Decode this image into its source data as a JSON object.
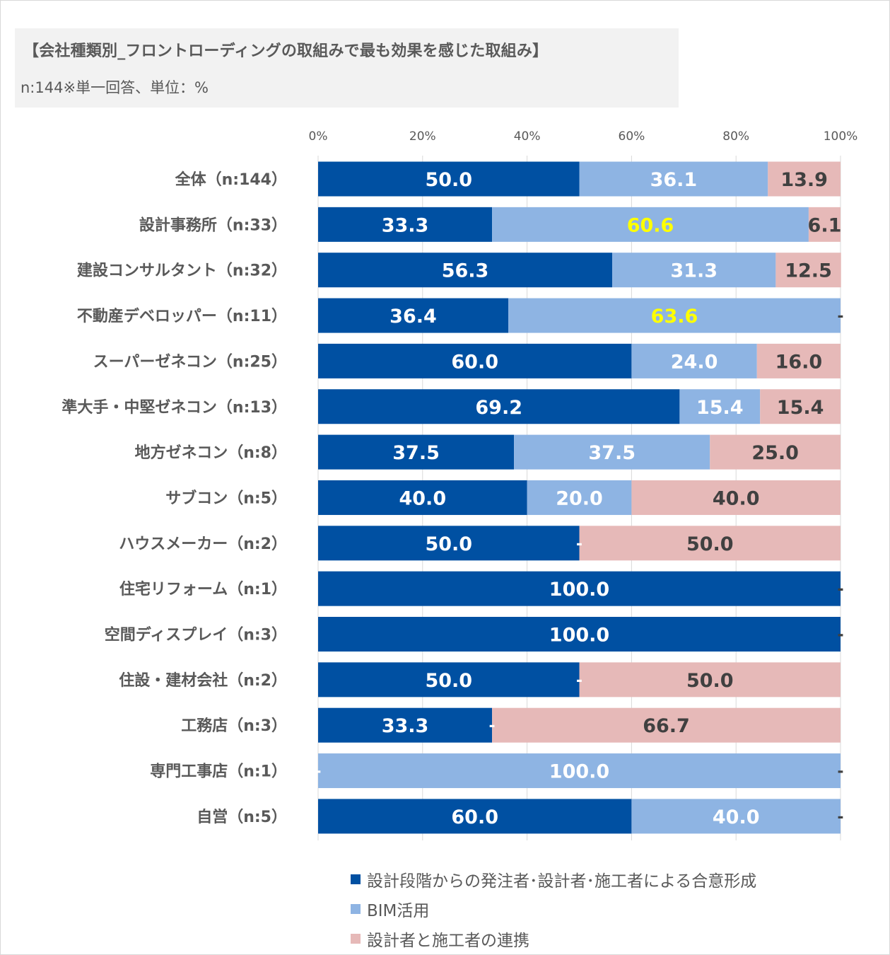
{
  "header": {
    "title": "【会社種類別_フロントローディングの取組みで最も効果を感じた取組み】",
    "subtitle": "n:144※単一回答、単位：%"
  },
  "chart_data": {
    "type": "bar",
    "orientation": "horizontal",
    "stacked": "percent",
    "title": "【会社種類別_フロントローディングの取組みで最も効果を感じた取組み】",
    "subtitle": "n:144※単一回答、単位：%",
    "xlabel": "",
    "ylabel": "",
    "xlim": [
      0,
      100
    ],
    "x_ticks": [
      "0%",
      "20%",
      "40%",
      "60%",
      "80%",
      "100%"
    ],
    "grid": true,
    "legend_position": "bottom",
    "categories": [
      "全体（n:144）",
      "設計事務所（n:33）",
      "建設コンサルタント（n:32）",
      "不動産デベロッパー（n:11）",
      "スーパーゼネコン（n:25）",
      "準大手・中堅ゼネコン（n:13）",
      "地方ゼネコン（n:8）",
      "サブコン（n:5）",
      "ハウスメーカー（n:2）",
      "住宅リフォーム（n:1）",
      "空間ディスプレイ（n:3）",
      "住設・建材会社（n:2）",
      "工務店（n:3）",
      "専門工事店（n:1）",
      "自営（n:5）"
    ],
    "series": [
      {
        "name": "設計段階からの発注者･設計者･施工者による合意形成",
        "color": "#0050a2",
        "label_color": "#ffffff",
        "values": [
          50.0,
          33.3,
          56.3,
          36.4,
          60.0,
          69.2,
          37.5,
          40.0,
          50.0,
          100.0,
          100.0,
          50.0,
          33.3,
          0,
          60.0
        ]
      },
      {
        "name": "BIM活用",
        "color": "#8eb4e3",
        "label_color": "#ffffff",
        "highlight_color": "#ffff00",
        "highlight_indices": [
          1,
          3
        ],
        "values": [
          36.1,
          60.6,
          31.3,
          63.6,
          24.0,
          15.4,
          37.5,
          20.0,
          0,
          0,
          0,
          0,
          0,
          100.0,
          40.0
        ]
      },
      {
        "name": "設計者と施工者の連携",
        "color": "#e6b9b8",
        "label_color": "#404040",
        "values": [
          13.9,
          6.1,
          12.5,
          0,
          16.0,
          15.4,
          25.0,
          40.0,
          50.0,
          0,
          0,
          50.0,
          66.7,
          0,
          0
        ]
      }
    ],
    "zero_label": "-"
  }
}
